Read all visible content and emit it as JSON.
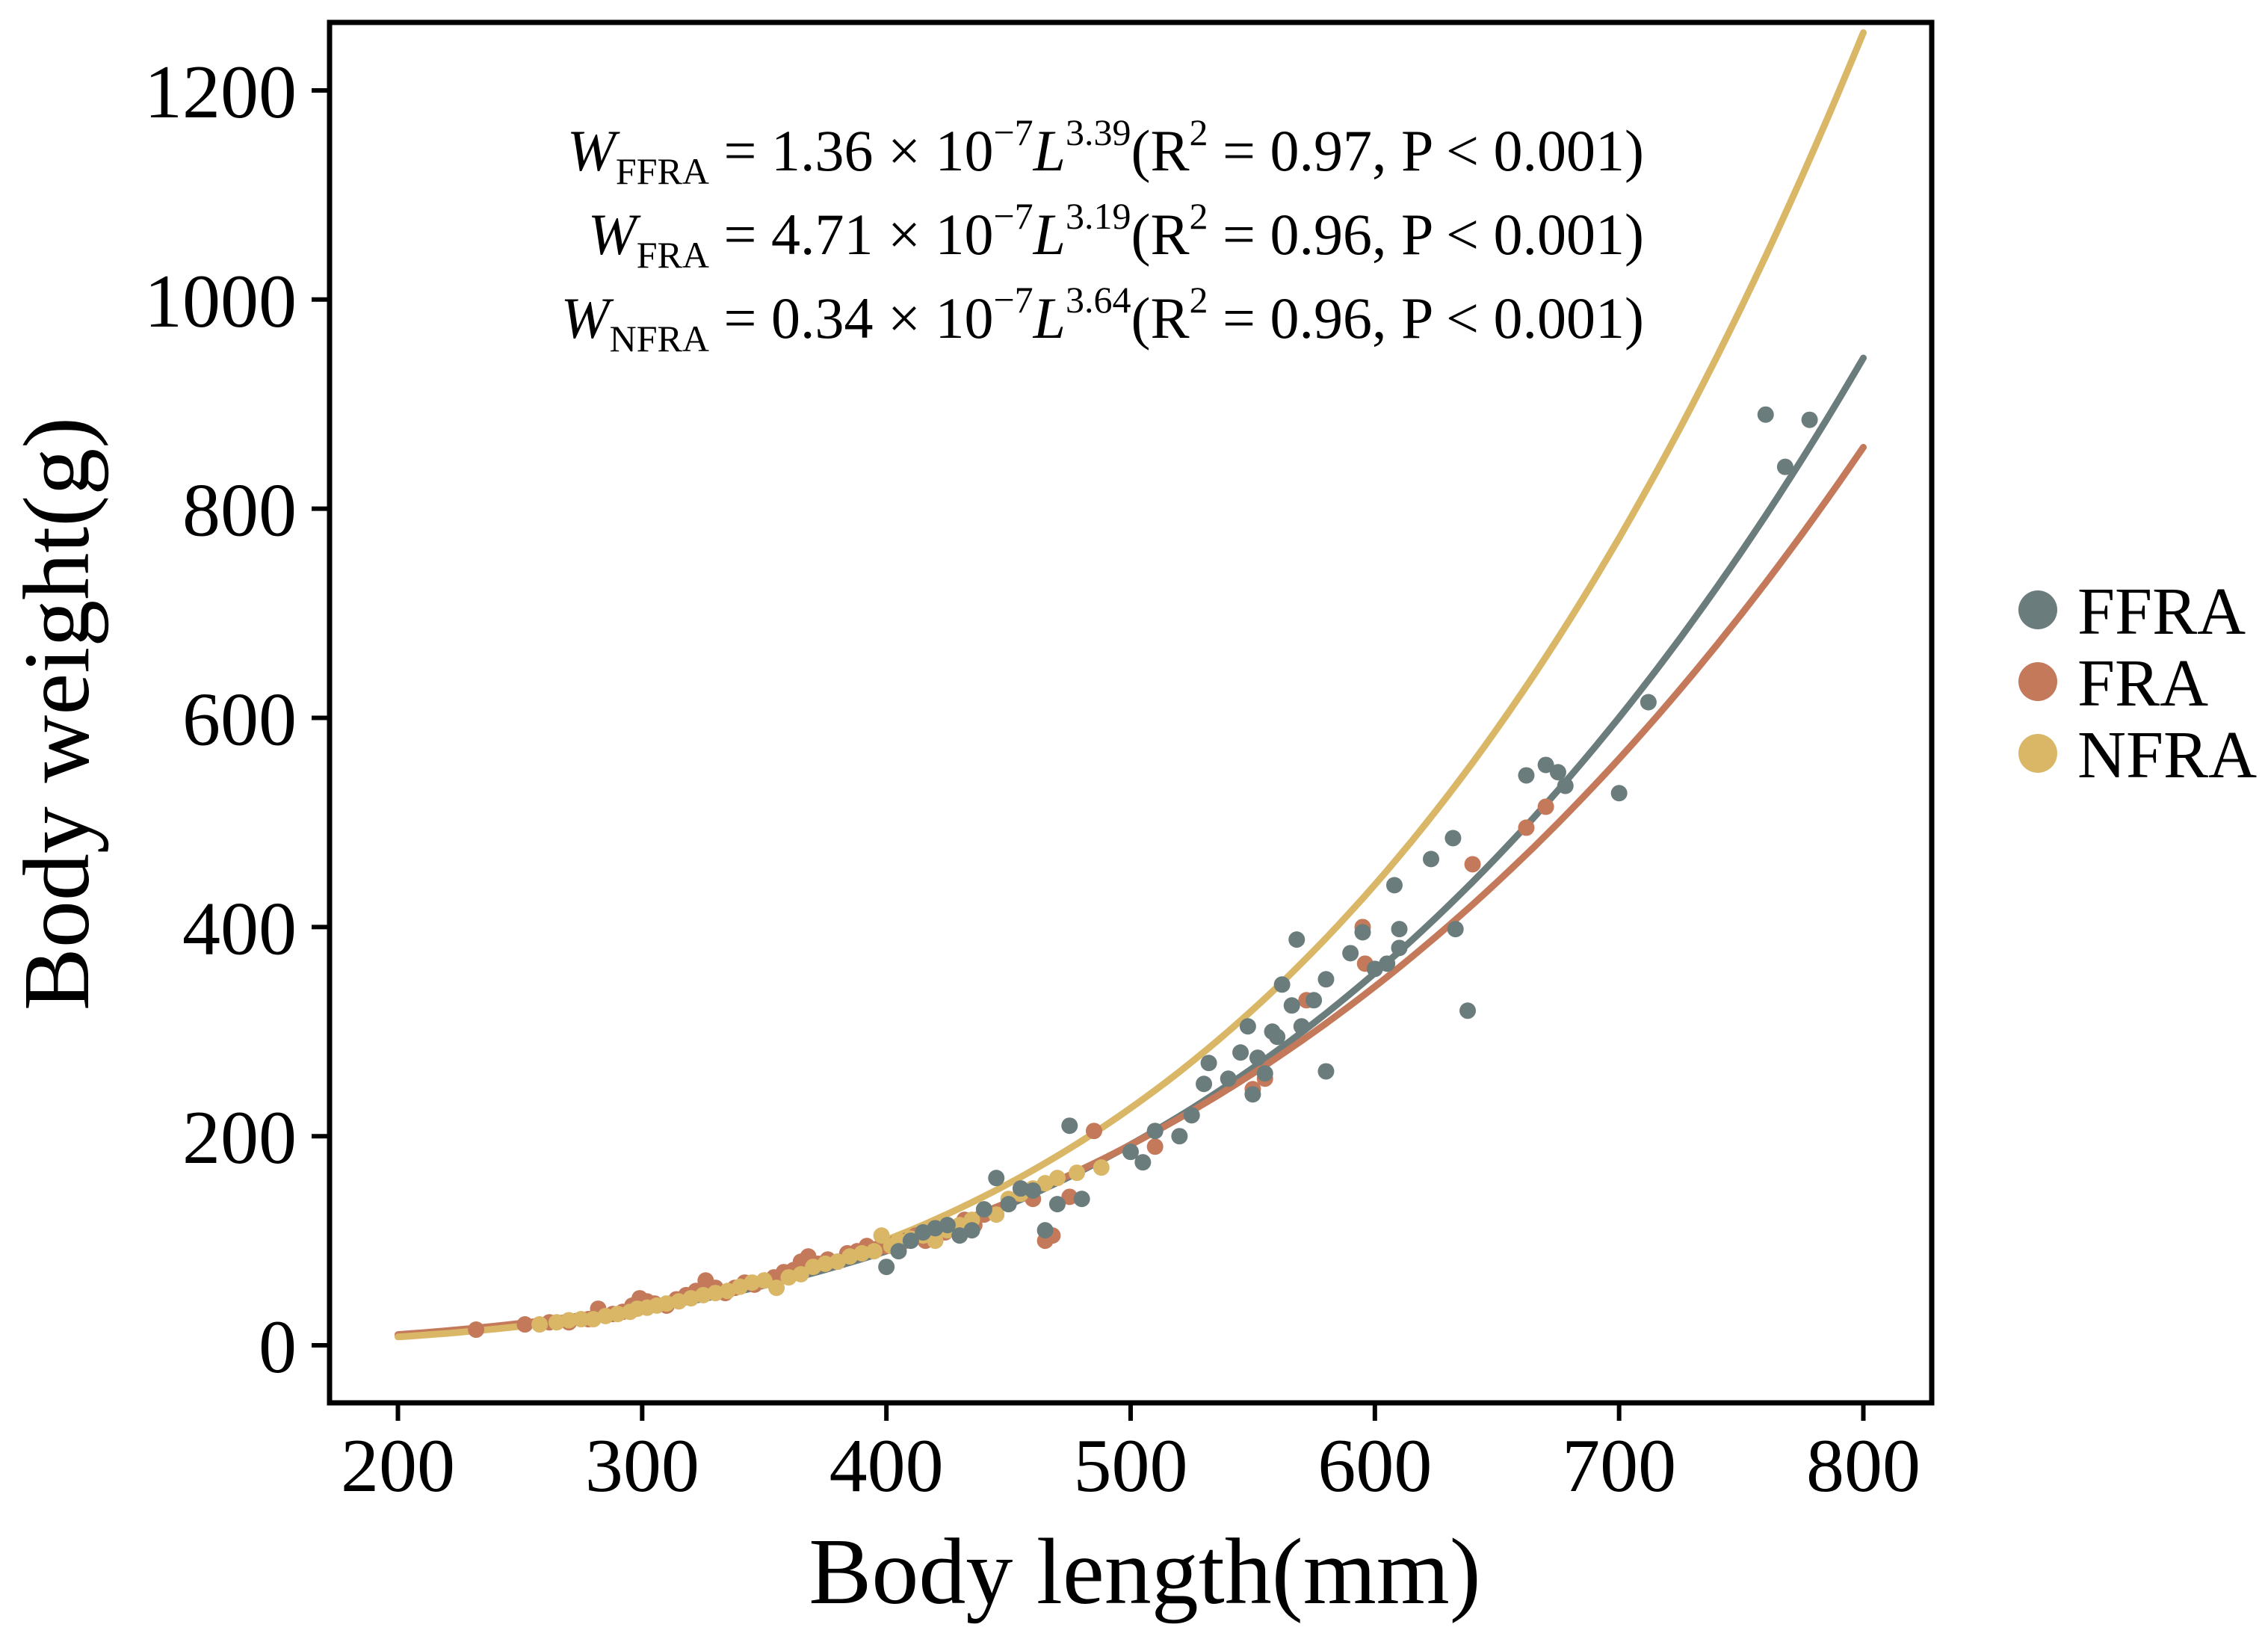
{
  "chart_data": {
    "type": "scatter",
    "title": "",
    "xlabel": "Body length(mm)",
    "ylabel": "Body weight(g)",
    "xlim": [
      172,
      828
    ],
    "ylim": [
      -55,
      1265
    ],
    "xticks": [
      200,
      300,
      400,
      500,
      600,
      700,
      800
    ],
    "yticks": [
      0,
      200,
      400,
      600,
      800,
      1000,
      1200
    ],
    "grid": false,
    "legend_position": "right",
    "equations": [
      {
        "lhs": "W",
        "sub": "FFRA",
        "eq": " = 1.36 × 10",
        "exp1": "−7",
        "var": "L",
        "exp2": "3.39",
        "rest": "(R",
        "rsq": "2",
        "tail": " = 0.97, P < 0.001)"
      },
      {
        "lhs": "W",
        "sub": "FRA",
        "eq": " = 4.71 × 10",
        "exp1": "−7",
        "var": "L",
        "exp2": "3.19",
        "rest": "(R",
        "rsq": "2",
        "tail": " = 0.96, P < 0.001)"
      },
      {
        "lhs": "W",
        "sub": "NFRA",
        "eq": " = 0.34 × 10",
        "exp1": "−7",
        "var": "L",
        "exp2": "3.64",
        "rest": "(R",
        "rsq": "2",
        "tail": " = 0.96, P < 0.001)"
      }
    ],
    "series": [
      {
        "name": "FFRA",
        "color": "#6b7c7c",
        "fit": {
          "a": 1.36e-07,
          "b": 3.39,
          "x_range": [
            200,
            800
          ]
        },
        "points": [
          [
            400,
            75
          ],
          [
            405,
            90
          ],
          [
            410,
            100
          ],
          [
            415,
            108
          ],
          [
            420,
            112
          ],
          [
            425,
            115
          ],
          [
            430,
            105
          ],
          [
            435,
            110
          ],
          [
            440,
            130
          ],
          [
            445,
            160
          ],
          [
            450,
            135
          ],
          [
            455,
            150
          ],
          [
            460,
            148
          ],
          [
            465,
            110
          ],
          [
            470,
            135
          ],
          [
            475,
            210
          ],
          [
            480,
            140
          ],
          [
            500,
            185
          ],
          [
            505,
            175
          ],
          [
            510,
            205
          ],
          [
            520,
            200
          ],
          [
            525,
            220
          ],
          [
            530,
            250
          ],
          [
            532,
            270
          ],
          [
            540,
            255
          ],
          [
            545,
            280
          ],
          [
            548,
            305
          ],
          [
            550,
            240
          ],
          [
            552,
            275
          ],
          [
            555,
            260
          ],
          [
            558,
            300
          ],
          [
            560,
            295
          ],
          [
            562,
            345
          ],
          [
            566,
            325
          ],
          [
            568,
            388
          ],
          [
            570,
            305
          ],
          [
            575,
            330
          ],
          [
            580,
            350
          ],
          [
            580,
            262
          ],
          [
            590,
            375
          ],
          [
            595,
            395
          ],
          [
            600,
            360
          ],
          [
            605,
            365
          ],
          [
            608,
            440
          ],
          [
            610,
            380
          ],
          [
            610,
            398
          ],
          [
            623,
            465
          ],
          [
            632,
            485
          ],
          [
            633,
            398
          ],
          [
            638,
            320
          ],
          [
            662,
            545
          ],
          [
            670,
            555
          ],
          [
            675,
            548
          ],
          [
            678,
            535
          ],
          [
            700,
            528
          ],
          [
            712,
            615
          ],
          [
            760,
            890
          ],
          [
            768,
            840
          ],
          [
            778,
            885
          ]
        ]
      },
      {
        "name": "FRA",
        "color": "#c47a5a",
        "fit": {
          "a": 4.71e-07,
          "b": 3.19,
          "x_range": [
            200,
            800
          ]
        },
        "points": [
          [
            232,
            15
          ],
          [
            252,
            20
          ],
          [
            262,
            22
          ],
          [
            270,
            22
          ],
          [
            278,
            25
          ],
          [
            282,
            35
          ],
          [
            288,
            30
          ],
          [
            292,
            32
          ],
          [
            296,
            38
          ],
          [
            299,
            45
          ],
          [
            302,
            42
          ],
          [
            305,
            40
          ],
          [
            310,
            38
          ],
          [
            314,
            44
          ],
          [
            318,
            48
          ],
          [
            322,
            52
          ],
          [
            326,
            62
          ],
          [
            330,
            55
          ],
          [
            334,
            50
          ],
          [
            338,
            55
          ],
          [
            342,
            60
          ],
          [
            346,
            58
          ],
          [
            350,
            62
          ],
          [
            354,
            65
          ],
          [
            358,
            70
          ],
          [
            362,
            72
          ],
          [
            365,
            80
          ],
          [
            368,
            85
          ],
          [
            372,
            78
          ],
          [
            376,
            82
          ],
          [
            380,
            80
          ],
          [
            384,
            88
          ],
          [
            388,
            90
          ],
          [
            392,
            95
          ],
          [
            396,
            92
          ],
          [
            400,
            95
          ],
          [
            404,
            98
          ],
          [
            408,
            100
          ],
          [
            412,
            105
          ],
          [
            416,
            100
          ],
          [
            420,
            110
          ],
          [
            424,
            108
          ],
          [
            428,
            112
          ],
          [
            432,
            120
          ],
          [
            436,
            115
          ],
          [
            440,
            125
          ],
          [
            450,
            135
          ],
          [
            460,
            140
          ],
          [
            465,
            100
          ],
          [
            468,
            105
          ],
          [
            475,
            142
          ],
          [
            485,
            205
          ],
          [
            510,
            190
          ],
          [
            550,
            245
          ],
          [
            555,
            255
          ],
          [
            572,
            330
          ],
          [
            595,
            400
          ],
          [
            596,
            365
          ],
          [
            640,
            460
          ],
          [
            662,
            495
          ],
          [
            670,
            515
          ]
        ]
      },
      {
        "name": "NFRA",
        "color": "#d9b766",
        "fit": {
          "a": 3.4e-08,
          "b": 3.64,
          "x_range": [
            200,
            800
          ]
        },
        "points": [
          [
            258,
            20
          ],
          [
            265,
            22
          ],
          [
            270,
            24
          ],
          [
            275,
            25
          ],
          [
            280,
            25
          ],
          [
            285,
            28
          ],
          [
            290,
            30
          ],
          [
            295,
            32
          ],
          [
            298,
            35
          ],
          [
            302,
            36
          ],
          [
            306,
            38
          ],
          [
            310,
            40
          ],
          [
            315,
            42
          ],
          [
            320,
            45
          ],
          [
            325,
            48
          ],
          [
            330,
            50
          ],
          [
            335,
            52
          ],
          [
            340,
            56
          ],
          [
            345,
            60
          ],
          [
            350,
            62
          ],
          [
            355,
            55
          ],
          [
            360,
            65
          ],
          [
            365,
            68
          ],
          [
            370,
            75
          ],
          [
            375,
            78
          ],
          [
            380,
            80
          ],
          [
            385,
            85
          ],
          [
            390,
            88
          ],
          [
            395,
            90
          ],
          [
            398,
            105
          ],
          [
            402,
            95
          ],
          [
            405,
            100
          ],
          [
            410,
            102
          ],
          [
            415,
            105
          ],
          [
            420,
            100
          ],
          [
            425,
            110
          ],
          [
            430,
            115
          ],
          [
            435,
            120
          ],
          [
            440,
            130
          ],
          [
            445,
            125
          ],
          [
            450,
            140
          ],
          [
            455,
            145
          ],
          [
            460,
            150
          ],
          [
            465,
            155
          ],
          [
            470,
            160
          ],
          [
            478,
            165
          ],
          [
            488,
            170
          ]
        ]
      }
    ]
  }
}
